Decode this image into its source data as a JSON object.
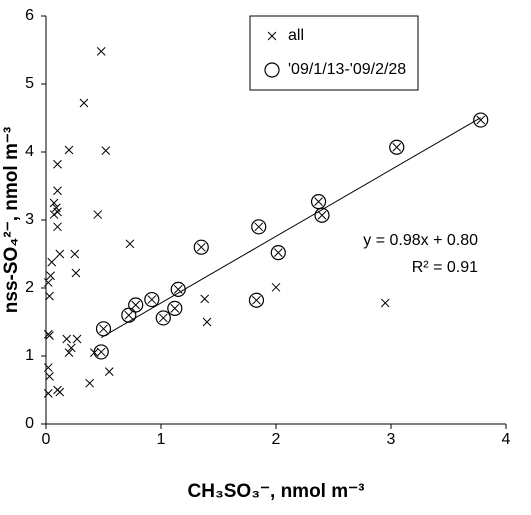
{
  "chart_data": {
    "type": "scatter",
    "xlabel": "CH₃SO₃⁻, nmol m⁻³",
    "ylabel": "nss-SO₄²⁻, nmol m⁻³",
    "xlim": [
      0,
      4
    ],
    "xticks": [
      0,
      1,
      2,
      3,
      4
    ],
    "ylim": [
      0,
      6
    ],
    "yticks": [
      0,
      1,
      2,
      3,
      4,
      5,
      6
    ],
    "grid": false,
    "legend": "upper right",
    "series": [
      {
        "name": "all",
        "marker": "x",
        "color": "#000000",
        "x": [
          0.48,
          0.33,
          0.2,
          0.52,
          0.1,
          0.1,
          0.07,
          0.09,
          0.1,
          0.07,
          0.45,
          0.1,
          0.73,
          0.12,
          0.25,
          0.05,
          0.26,
          0.04,
          0.02,
          0.03,
          1.38,
          2.0,
          2.95,
          1.4,
          0.18,
          0.27,
          0.22,
          0.2,
          0.42,
          0.02,
          0.03,
          0.55,
          0.02,
          0.03,
          0.38,
          0.1,
          0.12,
          0.02,
          0.48,
          0.5,
          0.72,
          0.78,
          0.92,
          1.02,
          1.12,
          1.15,
          1.35,
          1.83,
          1.85,
          2.02,
          2.37,
          2.4,
          3.05,
          3.78
        ],
        "values": [
          5.48,
          4.72,
          4.03,
          4.02,
          3.82,
          3.43,
          3.25,
          3.18,
          3.12,
          3.08,
          3.08,
          2.9,
          2.65,
          2.5,
          2.5,
          2.38,
          2.22,
          2.18,
          2.08,
          1.88,
          1.84,
          2.01,
          1.78,
          1.5,
          1.25,
          1.25,
          1.12,
          1.05,
          1.05,
          1.32,
          1.3,
          0.77,
          0.83,
          0.7,
          0.6,
          0.5,
          0.47,
          0.45,
          1.06,
          1.4,
          1.6,
          1.75,
          1.83,
          1.56,
          1.7,
          1.98,
          2.6,
          1.82,
          2.9,
          2.52,
          3.27,
          3.07,
          4.07,
          4.47
        ]
      },
      {
        "name": "'09/1/13-'09/2/28",
        "marker": "o",
        "color": "#000000",
        "x": [
          0.48,
          0.5,
          0.72,
          0.78,
          0.92,
          1.02,
          1.12,
          1.15,
          1.35,
          1.83,
          1.85,
          2.02,
          2.37,
          2.4,
          3.05,
          3.78
        ],
        "values": [
          1.06,
          1.4,
          1.6,
          1.75,
          1.83,
          1.56,
          1.7,
          1.98,
          2.6,
          1.82,
          2.9,
          2.52,
          3.27,
          3.07,
          4.07,
          4.47
        ]
      }
    ],
    "fit": {
      "slope": 0.98,
      "intercept": 0.8,
      "range": [
        0.48,
        3.78
      ],
      "equation": "y = 0.98x + 0.80",
      "r2": "R² = 0.91"
    }
  }
}
